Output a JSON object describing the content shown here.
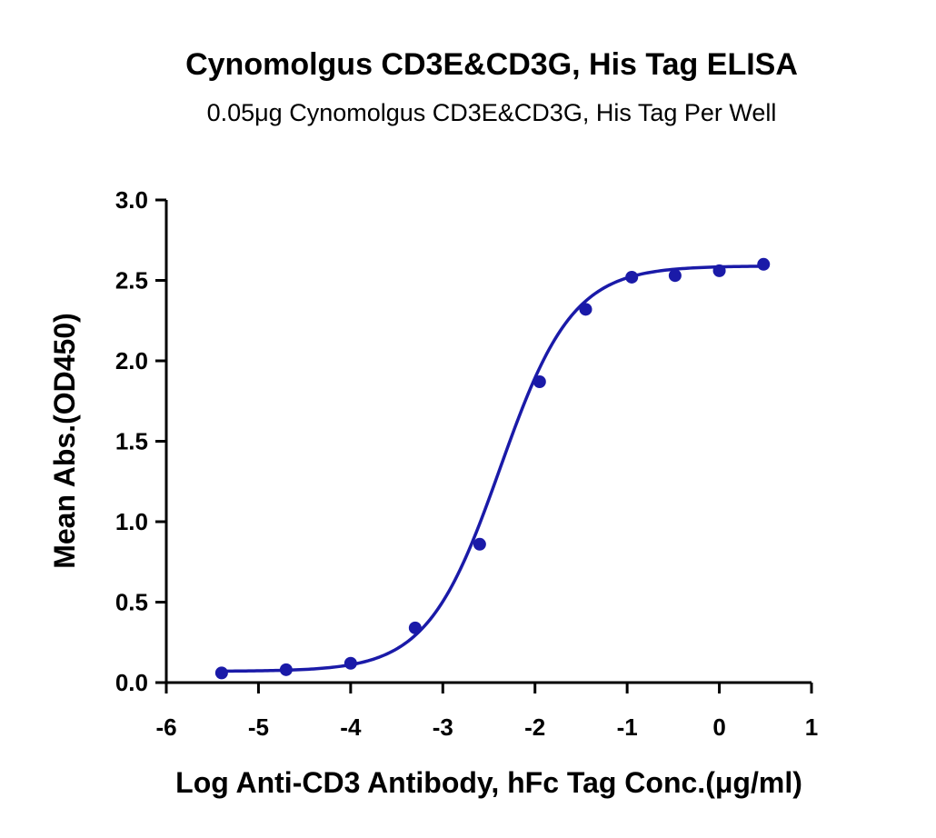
{
  "chart_data": {
    "type": "scatter",
    "title": "Cynomolgus CD3E&CD3G, His Tag ELISA",
    "subtitle": "0.05μg Cynomolgus CD3E&CD3G, His Tag Per Well",
    "xlabel": "Log Anti-CD3 Antibody, hFc Tag Conc.(μg/ml)",
    "ylabel": "Mean Abs.(OD450)",
    "xlim": [
      -6,
      1
    ],
    "ylim": [
      0,
      3.0
    ],
    "xticks": [
      "-6",
      "-5",
      "-4",
      "-3",
      "-2",
      "-1",
      "0",
      "1"
    ],
    "yticks": [
      "0.0",
      "0.5",
      "1.0",
      "1.5",
      "2.0",
      "2.5",
      "3.0"
    ],
    "grid": false,
    "legend": "none",
    "series": [
      {
        "color": "#1a1aa8",
        "x": [
          -5.4,
          -4.7,
          -4.0,
          -3.3,
          -2.6,
          -1.95,
          -1.45,
          -0.95,
          -0.48,
          0.0,
          0.48
        ],
        "y": [
          0.06,
          0.08,
          0.12,
          0.34,
          0.86,
          1.87,
          2.32,
          2.52,
          2.53,
          2.56,
          2.6
        ]
      }
    ],
    "fit": {
      "type": "4PL",
      "bottom": 0.07,
      "top": 2.59,
      "log_ec50": -2.38,
      "hill": 1.1,
      "color": "#1a1aa8"
    }
  }
}
